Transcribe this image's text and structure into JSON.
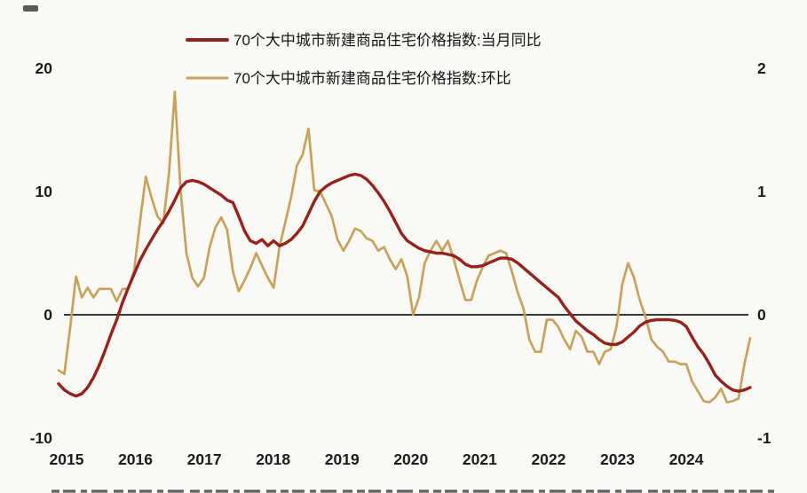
{
  "legend": {
    "items": [
      {
        "label": "70个大中城市新建商品住宅价格指数:当月同比",
        "color": "#94231c"
      },
      {
        "label": "70个大中城市新建商品住宅价格指数:环比",
        "color": "#c6a25c"
      }
    ]
  },
  "colors": {
    "yoy_line": "#94231c",
    "mom_line": "#c6a25c",
    "axis_text": "#1b1b1b",
    "zero_line": "#1b1b1b",
    "background": "#faf9f6"
  },
  "chart_data": {
    "type": "line",
    "title": "",
    "x_start_month": "2015-01",
    "x_end_month": "2024-12",
    "x_tick_labels": [
      "2015",
      "2016",
      "2017",
      "2018",
      "2019",
      "2020",
      "2021",
      "2022",
      "2023",
      "2024"
    ],
    "grid": false,
    "legend_position": "top-center",
    "left_axis": {
      "ticks": [
        20,
        10,
        0,
        -10
      ],
      "range": [
        -10,
        20
      ]
    },
    "right_axis": {
      "ticks": [
        2,
        1,
        0,
        -1
      ],
      "range": [
        -1,
        2
      ]
    },
    "series": [
      {
        "name": "70个大中城市新建商品住宅价格指数:当月同比",
        "axis": "left",
        "color": "#94231c",
        "values": [
          -5.6,
          -6.1,
          -6.4,
          -6.6,
          -6.4,
          -5.9,
          -5.1,
          -4.1,
          -2.9,
          -1.6,
          -0.4,
          1.0,
          2.2,
          3.3,
          4.4,
          5.3,
          6.1,
          6.9,
          7.6,
          8.4,
          9.3,
          10.3,
          10.8,
          10.9,
          10.8,
          10.6,
          10.3,
          10.0,
          9.7,
          9.3,
          9.1,
          8.0,
          6.8,
          6.0,
          5.8,
          6.1,
          5.6,
          6.0,
          5.6,
          5.8,
          6.1,
          6.6,
          7.2,
          8.2,
          9.2,
          10.0,
          10.4,
          10.7,
          10.9,
          11.1,
          11.3,
          11.4,
          11.3,
          11.0,
          10.5,
          9.9,
          9.2,
          8.4,
          7.5,
          6.6,
          6.0,
          5.7,
          5.4,
          5.2,
          5.1,
          5.0,
          5.0,
          4.9,
          4.8,
          4.5,
          4.1,
          3.9,
          3.9,
          4.0,
          4.2,
          4.4,
          4.6,
          4.6,
          4.5,
          4.2,
          3.8,
          3.4,
          3.0,
          2.6,
          2.2,
          1.8,
          1.4,
          0.7,
          0.1,
          -0.5,
          -0.9,
          -1.3,
          -1.6,
          -2.0,
          -2.3,
          -2.4,
          -2.4,
          -2.2,
          -1.8,
          -1.4,
          -0.9,
          -0.6,
          -0.45,
          -0.4,
          -0.4,
          -0.4,
          -0.45,
          -0.6,
          -0.95,
          -1.8,
          -2.6,
          -3.2,
          -4.0,
          -4.9,
          -5.4,
          -5.8,
          -6.1,
          -6.2,
          -6.1,
          -5.9
        ]
      },
      {
        "name": "70个大中城市新建商品住宅价格指数:环比",
        "axis": "right",
        "color": "#c6a25c",
        "values": [
          -0.45,
          -0.48,
          -0.1,
          0.31,
          0.14,
          0.22,
          0.14,
          0.21,
          0.21,
          0.21,
          0.11,
          0.21,
          0.21,
          0.36,
          0.75,
          1.12,
          0.95,
          0.8,
          0.74,
          1.15,
          1.81,
          1.0,
          0.5,
          0.3,
          0.23,
          0.3,
          0.55,
          0.71,
          0.79,
          0.69,
          0.35,
          0.19,
          0.28,
          0.38,
          0.5,
          0.4,
          0.3,
          0.22,
          0.55,
          0.75,
          0.95,
          1.21,
          1.3,
          1.51,
          1.01,
          1.0,
          0.9,
          0.8,
          0.61,
          0.52,
          0.6,
          0.7,
          0.68,
          0.62,
          0.6,
          0.52,
          0.55,
          0.45,
          0.37,
          0.45,
          0.31,
          0.0,
          0.14,
          0.42,
          0.52,
          0.6,
          0.52,
          0.6,
          0.45,
          0.28,
          0.12,
          0.12,
          0.28,
          0.39,
          0.48,
          0.5,
          0.52,
          0.5,
          0.35,
          0.18,
          0.05,
          -0.2,
          -0.3,
          -0.3,
          -0.04,
          -0.04,
          -0.1,
          -0.2,
          -0.28,
          -0.13,
          -0.18,
          -0.3,
          -0.3,
          -0.4,
          -0.3,
          -0.28,
          -0.1,
          0.25,
          0.42,
          0.3,
          0.12,
          -0.02,
          -0.2,
          -0.26,
          -0.3,
          -0.38,
          -0.38,
          -0.4,
          -0.4,
          -0.54,
          -0.62,
          -0.7,
          -0.71,
          -0.67,
          -0.6,
          -0.71,
          -0.7,
          -0.68,
          -0.4,
          -0.19
        ]
      }
    ]
  }
}
